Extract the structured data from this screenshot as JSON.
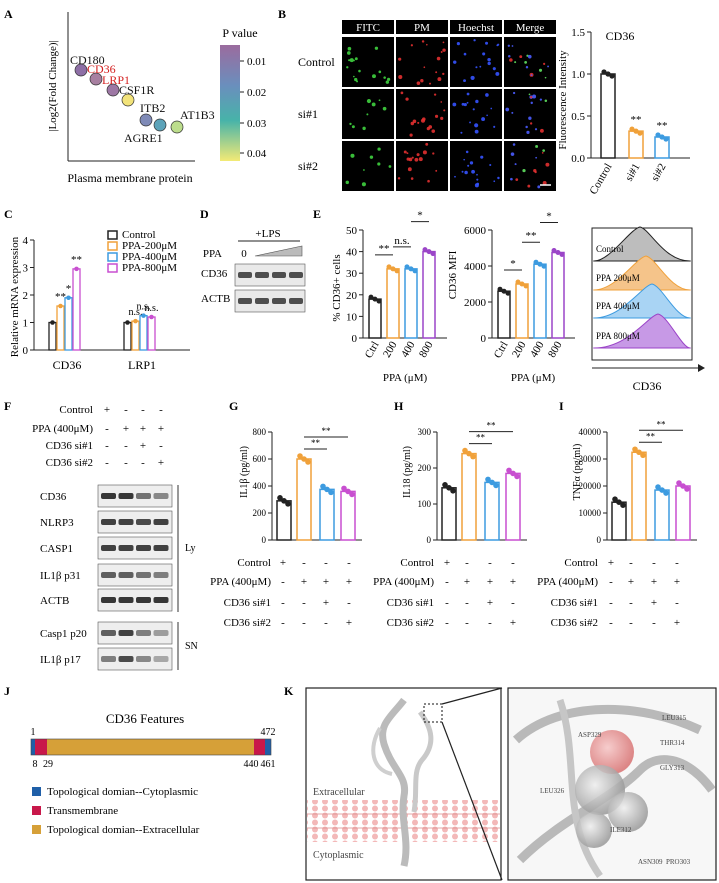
{
  "panels": [
    "A",
    "B",
    "C",
    "D",
    "E",
    "F",
    "G",
    "H",
    "I",
    "J",
    "K"
  ],
  "A": {
    "ylabel": "|Log2(Fold Change)|",
    "xlabel": "Plasma membrane protein",
    "legend_title": "P value",
    "legend_ticks": [
      "0.01",
      "0.02",
      "0.03",
      "0.04"
    ],
    "points": [
      {
        "label": "CD180",
        "p": 0.005,
        "color": "#8e6fa6",
        "red": false
      },
      {
        "label": "CD36",
        "p": 0.008,
        "color": "#a77fa0",
        "red": true
      },
      {
        "label": "LRP1",
        "p": 0.009,
        "color": "#9d77a4",
        "red": true
      },
      {
        "label": "CSF1R",
        "p": 0.045,
        "color": "#f2e37a",
        "red": false
      },
      {
        "label": "ITB2",
        "p": 0.012,
        "color": "#7f8ab7",
        "red": false
      },
      {
        "label": "AGRE1",
        "p": 0.022,
        "color": "#5ca3b9",
        "red": false
      },
      {
        "label": "AT1B3",
        "p": 0.038,
        "color": "#bcdd8c",
        "red": false
      }
    ],
    "label_color": "#d42020"
  },
  "B": {
    "columns": [
      "FITC",
      "PM",
      "Hoechst",
      "Merge"
    ],
    "rows": [
      "Control",
      "si#1",
      "si#2"
    ],
    "chart": {
      "title": "CD36",
      "ylabel": "Fluorescence Intensity",
      "yticks": [
        "0.0",
        "0.5",
        "1.0",
        "1.5"
      ],
      "categories": [
        "Control",
        "si#1",
        "si#2"
      ],
      "values": [
        1.0,
        0.32,
        0.25
      ],
      "sig": [
        "",
        "**",
        "**"
      ],
      "colors": [
        "#222222",
        "#f0a13a",
        "#3d9be0"
      ]
    }
  },
  "C": {
    "ylabel": "Relative mRNA expression",
    "yticks": [
      "0",
      "1",
      "2",
      "3",
      "4"
    ],
    "groups": [
      "CD36",
      "LRP1"
    ],
    "series": [
      {
        "name": "Control",
        "color": "#222222",
        "values": [
          1.0,
          1.0
        ]
      },
      {
        "name": "PPA-200μM",
        "color": "#f0a13a",
        "values": [
          1.6,
          1.05
        ]
      },
      {
        "name": "PPA-400μM",
        "color": "#3d9be0",
        "values": [
          1.9,
          1.25
        ]
      },
      {
        "name": "PPA-800μM",
        "color": "#c84fd0",
        "values": [
          2.95,
          1.2
        ]
      }
    ],
    "sig": [
      [
        "",
        "**",
        "*",
        "**"
      ],
      [
        "",
        "n.s.",
        "n.s.",
        "n.s."
      ]
    ]
  },
  "D": {
    "treatment": "+LPS",
    "ppa_label": "PPA",
    "zero": "0",
    "rows": [
      "CD36",
      "ACTB"
    ]
  },
  "E": {
    "ylabel1": "% CD36+ cells",
    "xlabel": "PPA (μM)",
    "categories": [
      "Ctrl",
      "200",
      "400",
      "800"
    ],
    "values1": [
      18,
      32,
      32,
      40
    ],
    "yticks1": [
      "0",
      "10",
      "20",
      "30",
      "40",
      "50"
    ],
    "sig1": [
      "**",
      "n.s.",
      "*"
    ],
    "ylabel2": "CD36 MFI",
    "values2": [
      2600,
      3000,
      4100,
      4750
    ],
    "yticks2": [
      "0",
      "2000",
      "4000",
      "6000"
    ],
    "sig2": [
      "*",
      "**",
      "*"
    ],
    "flow_labels": [
      "Control",
      "PPA 200μM",
      "PPA 400μM",
      "PPA 800μM"
    ],
    "flow_axis": "CD36",
    "colors": [
      "#222222",
      "#f0a13a",
      "#3d9be0",
      "#9b45c8"
    ]
  },
  "F": {
    "conditions": [
      "Control",
      "PPA (400μM)",
      "CD36 si#1",
      "CD36 si#2"
    ],
    "signs": [
      [
        "+",
        "-",
        "-",
        "-"
      ],
      [
        "-",
        "+",
        "+",
        "+"
      ],
      [
        "-",
        "-",
        "+",
        "-"
      ],
      [
        "-",
        "-",
        "-",
        "+"
      ]
    ],
    "bands": [
      "CD36",
      "NLRP3",
      "CASP1",
      "IL1β p31",
      "ACTB",
      "Casp1 p20",
      "IL1β p17"
    ],
    "groups": [
      "Ly",
      "SN"
    ]
  },
  "G": {
    "ylabel": "IL1β (pg/ml)",
    "yticks": [
      "0",
      "200",
      "400",
      "600",
      "800"
    ],
    "values": [
      290,
      600,
      375,
      360
    ],
    "sig": [
      "**",
      "**"
    ]
  },
  "H": {
    "ylabel": "IL18 (pg/ml)",
    "yticks": [
      "0",
      "100",
      "200",
      "300"
    ],
    "values": [
      145,
      240,
      160,
      185
    ],
    "sig": [
      "**",
      "**"
    ]
  },
  "I": {
    "ylabel": "TNFα (pg/ml)",
    "yticks": [
      "0",
      "10000",
      "20000",
      "30000",
      "40000"
    ],
    "values": [
      14000,
      32500,
      18500,
      20000
    ],
    "sig": [
      "**",
      "**"
    ]
  },
  "GHI": {
    "conditions": [
      "Control",
      "PPA (400μM)",
      "CD36 si#1",
      "CD36 si#2"
    ],
    "signs": [
      [
        "+",
        "-",
        "-",
        "-"
      ],
      [
        "-",
        "+",
        "+",
        "+"
      ],
      [
        "-",
        "-",
        "+",
        "-"
      ],
      [
        "-",
        "-",
        "-",
        "+"
      ]
    ],
    "colors": [
      "#222222",
      "#f0a13a",
      "#3d9be0",
      "#c84fd0"
    ]
  },
  "J": {
    "title": "CD36 Features",
    "start": "1",
    "end": "472",
    "marks": [
      "8",
      "29",
      "440",
      "461"
    ],
    "legend": [
      {
        "label": "Topological domian--Cytoplasmic",
        "color": "#1f5fa8"
      },
      {
        "label": "Transmembrane",
        "color": "#c8184a"
      },
      {
        "label": "Topological domian--Extracellular",
        "color": "#d6a038"
      }
    ]
  },
  "K": {
    "extracellular": "Extracellular",
    "cytoplasmic": "Cytoplasmic",
    "residues": [
      "LEU315",
      "ASP329",
      "THR314",
      "GLY313",
      "LEU326",
      "ILE312",
      "ASN309",
      "PRO303"
    ]
  }
}
